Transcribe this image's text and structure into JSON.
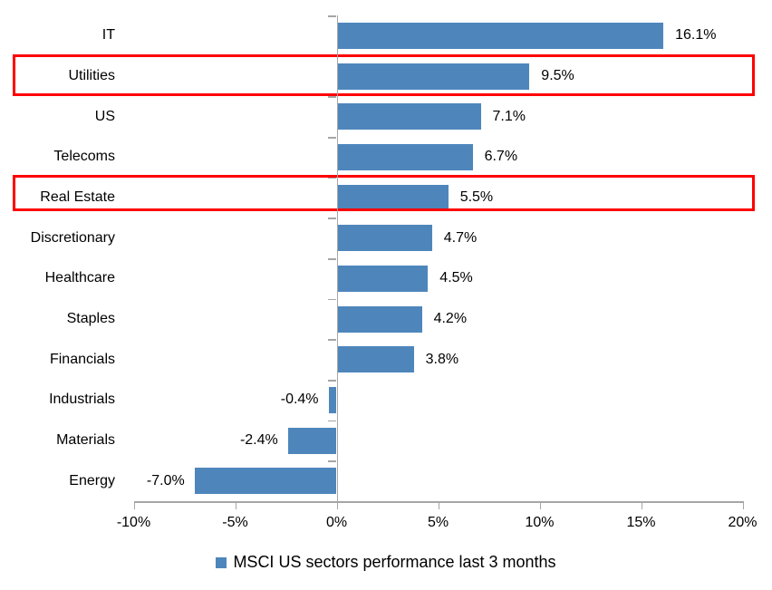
{
  "chart_data": {
    "type": "bar",
    "orientation": "horizontal",
    "title": "",
    "categories": [
      "IT",
      "Utilities",
      "US",
      "Telecoms",
      "Real Estate",
      "Discretionary",
      "Healthcare",
      "Staples",
      "Financials",
      "Industrials",
      "Materials",
      "Energy"
    ],
    "values": [
      16.1,
      9.5,
      7.1,
      6.7,
      5.5,
      4.7,
      4.5,
      4.2,
      3.8,
      -0.4,
      -2.4,
      -7.0
    ],
    "value_labels": [
      "16.1%",
      "9.5%",
      "7.1%",
      "6.7%",
      "5.5%",
      "4.7%",
      "4.5%",
      "4.2%",
      "3.8%",
      "-0.4%",
      "-2.4%",
      "-7.0%"
    ],
    "highlighted_categories": [
      "Utilities",
      "Real Estate"
    ],
    "xlim": [
      -10,
      20
    ],
    "x_tick_values": [
      -10,
      -5,
      0,
      5,
      10,
      15,
      20
    ],
    "x_tick_labels": [
      "-10%",
      "-5%",
      "0%",
      "5%",
      "10%",
      "15%",
      "20%"
    ],
    "grid": false,
    "legend_position": "bottom",
    "legend": "MSCI US sectors performance last 3 months",
    "bar_color": "#4e86bc",
    "highlight_box_color": "#ff0000",
    "axis_color": "#a6a6a6",
    "text_color": "#000000"
  }
}
